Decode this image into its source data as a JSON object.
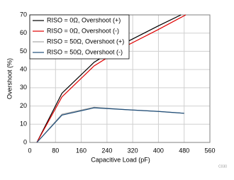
{
  "chart_data": {
    "type": "line",
    "x_label": "Capacitive Load (pF)",
    "y_label": "Overshoot (%)",
    "figure_id": "C030",
    "xlim": [
      0,
      560
    ],
    "xticks": [
      0,
      80,
      160,
      240,
      320,
      400,
      480,
      560
    ],
    "ylim": [
      0,
      70
    ],
    "yticks": [
      0,
      10,
      20,
      30,
      40,
      50,
      60,
      70
    ],
    "grid": true,
    "legend": "upper left",
    "series": [
      {
        "name": "RISO = 0Ω, Overshoot (+)",
        "color": "#000000",
        "x": [
          22,
          100,
          200,
          300,
          400,
          470
        ],
        "values": [
          0,
          27,
          44,
          55,
          64,
          70
        ]
      },
      {
        "name": "RISO = 0Ω, Overshoot (-)",
        "color": "#e00000",
        "x": [
          22,
          100,
          200,
          300,
          400,
          485
        ],
        "values": [
          0,
          25,
          42,
          53,
          62,
          70
        ]
      },
      {
        "name": "RISO = 50Ω, Overshoot (+)",
        "color": "#a6a6a6",
        "x": [
          22,
          100,
          200,
          300,
          400,
          480
        ],
        "values": [
          0,
          15.5,
          19.3,
          18,
          17,
          16
        ]
      },
      {
        "name": "RISO = 50Ω, Overshoot (-)",
        "color": "#1f4e79",
        "x": [
          22,
          100,
          200,
          300,
          400,
          480
        ],
        "values": [
          0,
          15,
          19,
          18,
          17,
          16
        ]
      }
    ]
  }
}
